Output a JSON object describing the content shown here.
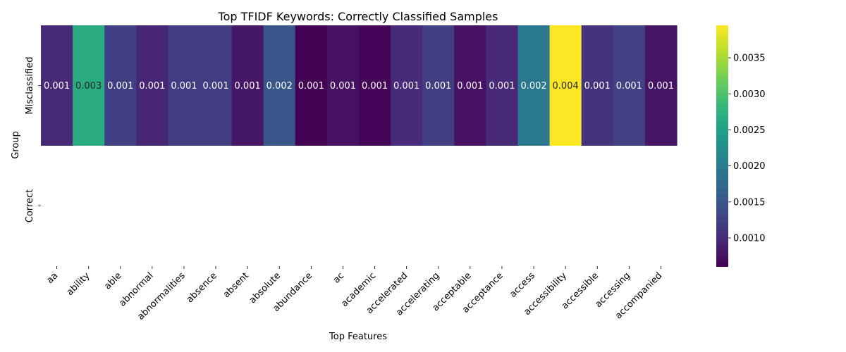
{
  "chart_data": {
    "type": "heatmap",
    "title": "Top TFIDF Keywords: Correctly Classified Samples",
    "xlabel": "Top Features",
    "ylabel": "Group",
    "x_categories": [
      "aa",
      "ability",
      "able",
      "abnormal",
      "abnormalities",
      "absence",
      "absent",
      "absolute",
      "abundance",
      "ac",
      "academic",
      "accelerated",
      "accelerating",
      "acceptable",
      "acceptance",
      "access",
      "accessibility",
      "accessible",
      "accessing",
      "accompanied"
    ],
    "y_categories": [
      "Misclassified",
      "Correct"
    ],
    "values": [
      [
        0.00098,
        0.00265,
        0.00123,
        0.00095,
        0.0012,
        0.0012,
        0.0008,
        0.0015,
        0.0006,
        0.00075,
        0.00065,
        0.001,
        0.00122,
        0.00075,
        0.00098,
        0.00195,
        0.00395,
        0.0011,
        0.00125,
        0.00078
      ],
      [
        null,
        null,
        null,
        null,
        null,
        null,
        null,
        null,
        null,
        null,
        null,
        null,
        null,
        null,
        null,
        null,
        null,
        null,
        null,
        null
      ]
    ],
    "cell_labels": [
      [
        "0.001",
        "0.003",
        "0.001",
        "0.001",
        "0.001",
        "0.001",
        "0.001",
        "0.002",
        "0.001",
        "0.001",
        "0.001",
        "0.001",
        "0.001",
        "0.001",
        "0.001",
        "0.002",
        "0.004",
        "0.001",
        "0.001",
        "0.001"
      ],
      [
        "",
        "",
        "",
        "",
        "",
        "",
        "",
        "",
        "",
        "",
        "",
        "",
        "",
        "",
        "",
        "",
        "",
        "",
        "",
        ""
      ]
    ],
    "colormap": "viridis",
    "colorbar": {
      "range": [
        0.0006,
        0.00395
      ],
      "ticks": [
        0.001,
        0.0015,
        0.002,
        0.0025,
        0.003,
        0.0035
      ],
      "tick_labels": [
        "0.0010",
        "0.0015",
        "0.0020",
        "0.0025",
        "0.0030",
        "0.0035"
      ]
    },
    "colors": {
      "viridis_stops": [
        "#440154",
        "#482878",
        "#3e4989",
        "#31688e",
        "#26828e",
        "#1f9e89",
        "#35b779",
        "#6ece58",
        "#b5de2b",
        "#fde725"
      ],
      "text_dark_bg": "#ffffff",
      "text_light_bg": "#262626"
    }
  }
}
